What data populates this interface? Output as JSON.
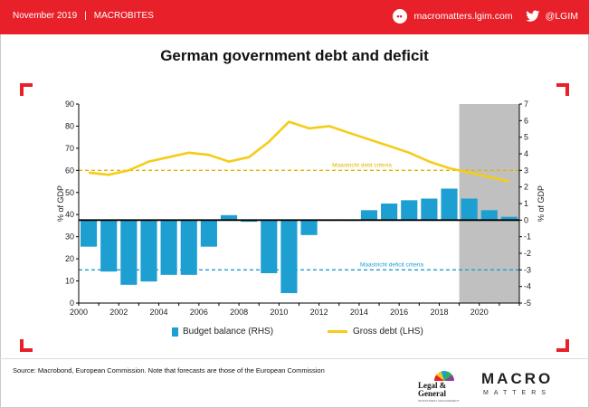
{
  "header": {
    "date": "November 2019",
    "separator": "|",
    "section": "MACROBITES",
    "website": "macromatters.lgim.com",
    "website_icon": "mouse-icon",
    "social_icon": "twitter-bird-icon",
    "handle": "@LGIM",
    "bar_color": "#e8202a"
  },
  "title": "German government debt and deficit",
  "source": "Source: Macrobond, European Commission. Note that forecasts are those of the European Commission",
  "logos": {
    "lg_name_line1": "Legal &",
    "lg_name_line2": "General",
    "lg_sub": "INVESTMENT MANAGEMENT",
    "mm_big": "MACRO",
    "mm_small": "MATTERS"
  },
  "chart_data": {
    "type": "bar+line",
    "title": "German government debt and deficit",
    "x_ticks": [
      "2000",
      "2002",
      "2004",
      "2006",
      "2008",
      "2010",
      "2012",
      "2014",
      "2016",
      "2018",
      "2020"
    ],
    "x_range": [
      2000,
      2022
    ],
    "left_axis": {
      "label": "% of GDP",
      "range": [
        0,
        90
      ],
      "ticks": [
        0,
        10,
        20,
        30,
        40,
        50,
        60,
        70,
        80,
        90
      ]
    },
    "right_axis": {
      "label": "% of GDP",
      "range": [
        -5,
        7
      ],
      "ticks": [
        -5,
        -4,
        -3,
        -2,
        -1,
        0,
        1,
        2,
        3,
        4,
        5,
        6,
        7
      ]
    },
    "forecast_shade": {
      "from": 2019,
      "to": 2022,
      "color": "#c0c0c0"
    },
    "legend": [
      {
        "name": "Budget balance (RHS)",
        "color": "#1e9fd2",
        "kind": "bar"
      },
      {
        "name": "Gross debt (LHS)",
        "color": "#f5cc1a",
        "kind": "line"
      }
    ],
    "budget_balance": {
      "name": "Budget balance (RHS)",
      "axis": "right",
      "years": [
        2000,
        2001,
        2002,
        2003,
        2004,
        2005,
        2006,
        2007,
        2008,
        2009,
        2010,
        2011,
        2012,
        2013,
        2014,
        2015,
        2016,
        2017,
        2018,
        2019,
        2020,
        2021
      ],
      "values": [
        -1.6,
        -3.1,
        -3.9,
        -3.7,
        -3.3,
        -3.3,
        -1.6,
        0.3,
        -0.1,
        -3.2,
        -4.4,
        -0.9,
        0.0,
        0.0,
        0.6,
        1.0,
        1.2,
        1.3,
        1.9,
        1.3,
        0.6,
        0.2
      ]
    },
    "gross_debt": {
      "name": "Gross debt (LHS)",
      "axis": "left",
      "years": [
        2000,
        2001,
        2002,
        2003,
        2004,
        2005,
        2006,
        2007,
        2008,
        2009,
        2010,
        2011,
        2012,
        2013,
        2014,
        2015,
        2016,
        2017,
        2018,
        2019,
        2020,
        2021
      ],
      "values": [
        59,
        58,
        60,
        64,
        66,
        68,
        67,
        64,
        66,
        73,
        82,
        79,
        80,
        77,
        74,
        71,
        68,
        64,
        61,
        59,
        57,
        55
      ]
    },
    "reference_lines": [
      {
        "label": "Maastricht debt criteria",
        "axis": "left",
        "value": 60,
        "color": "#e0b400",
        "style": "dashed"
      },
      {
        "label": "Maastricht deficit criteria",
        "axis": "right",
        "value": -3,
        "color": "#1e9fd2",
        "style": "dashed"
      }
    ]
  }
}
